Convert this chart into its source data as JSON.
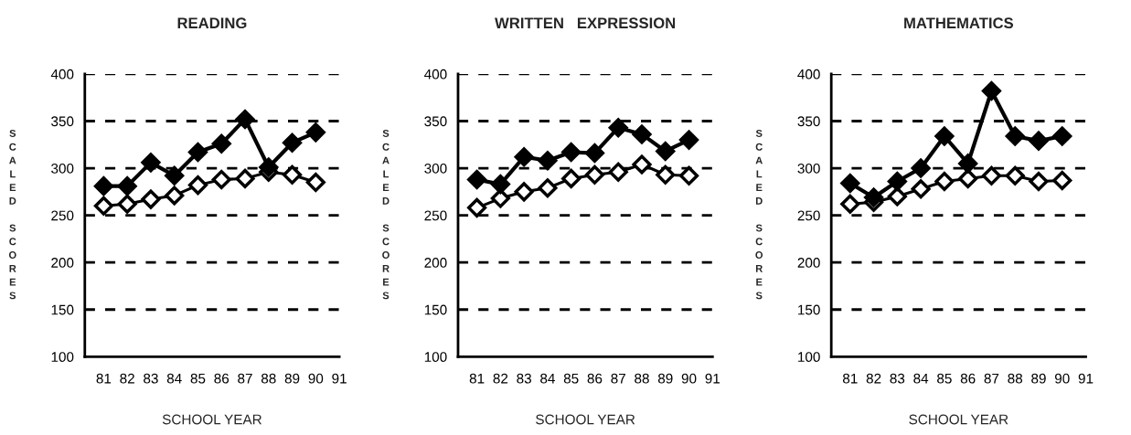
{
  "chart_data": [
    {
      "type": "line",
      "title": "READING",
      "xlabel": "SCHOOL YEAR",
      "ylabel": "SCALED SCORES",
      "x": [
        81,
        82,
        83,
        84,
        85,
        86,
        87,
        88,
        89,
        90
      ],
      "xlim": [
        80.2,
        91
      ],
      "xticks": [
        81,
        82,
        83,
        84,
        85,
        86,
        87,
        88,
        89,
        90,
        91
      ],
      "ylim": [
        100,
        400
      ],
      "yticks": [
        100,
        150,
        200,
        250,
        300,
        350,
        400
      ],
      "grid": "y",
      "marker": "diamond",
      "series": [
        {
          "color": "#000000",
          "values": [
            281,
            281,
            306,
            292,
            317,
            326,
            352,
            301,
            327,
            338
          ]
        },
        {
          "color": "#000000",
          "values": [
            260,
            262,
            267,
            271,
            282,
            288,
            289,
            296,
            293,
            285
          ]
        }
      ]
    },
    {
      "type": "line",
      "title": "WRITTEN   EXPRESSION",
      "xlabel": "SCHOOL YEAR",
      "ylabel": "SCALED SCORES",
      "x": [
        81,
        82,
        83,
        84,
        85,
        86,
        87,
        88,
        89,
        90
      ],
      "xlim": [
        80.2,
        91
      ],
      "xticks": [
        81,
        82,
        83,
        84,
        85,
        86,
        87,
        88,
        89,
        90,
        91
      ],
      "ylim": [
        100,
        400
      ],
      "yticks": [
        100,
        150,
        200,
        250,
        300,
        350,
        400
      ],
      "grid": "y",
      "marker": "diamond",
      "series": [
        {
          "color": "#000000",
          "values": [
            288,
            283,
            312,
            308,
            317,
            316,
            343,
            336,
            318,
            330
          ]
        },
        {
          "color": "#000000",
          "values": [
            258,
            268,
            275,
            279,
            289,
            293,
            296,
            304,
            293,
            292
          ]
        }
      ]
    },
    {
      "type": "line",
      "title": "MATHEMATICS",
      "xlabel": "SCHOOL YEAR",
      "ylabel": "SCALED SCORES",
      "x": [
        81,
        82,
        83,
        84,
        85,
        86,
        87,
        88,
        89,
        90
      ],
      "xlim": [
        80.2,
        91
      ],
      "xticks": [
        81,
        82,
        83,
        84,
        85,
        86,
        87,
        88,
        89,
        90,
        91
      ],
      "ylim": [
        100,
        400
      ],
      "yticks": [
        100,
        150,
        200,
        250,
        300,
        350,
        400
      ],
      "grid": "y",
      "marker": "diamond",
      "series": [
        {
          "color": "#000000",
          "values": [
            284,
            269,
            286,
            300,
            334,
            305,
            382,
            334,
            329,
            334
          ]
        },
        {
          "color": "#000000",
          "values": [
            262,
            264,
            270,
            278,
            286,
            289,
            292,
            292,
            286,
            287
          ]
        }
      ]
    }
  ]
}
